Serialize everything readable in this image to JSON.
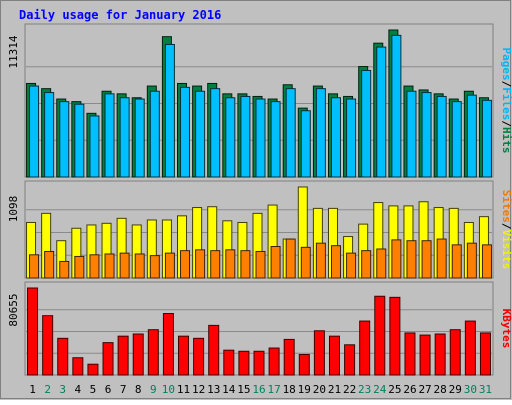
{
  "chart_data": {
    "type": "bar",
    "title": "Daily usage for January 2016",
    "categories": [
      "1",
      "2",
      "3",
      "4",
      "5",
      "6",
      "7",
      "8",
      "9",
      "10",
      "11",
      "12",
      "13",
      "14",
      "15",
      "16",
      "17",
      "18",
      "19",
      "20",
      "21",
      "22",
      "23",
      "24",
      "25",
      "26",
      "27",
      "28",
      "29",
      "30",
      "31"
    ],
    "weekend_days": [
      "2",
      "3",
      "9",
      "10",
      "16",
      "17",
      "23",
      "24",
      "30",
      "31"
    ],
    "panels": [
      {
        "id": "hits-files-pages",
        "max_label": "11314",
        "ymax": 11314,
        "right_labels": [
          "Pages",
          "Files",
          "Hits"
        ],
        "series": [
          {
            "name": "Hits",
            "color": "#008040",
            "values": [
              7200,
              6800,
              6000,
              5800,
              4900,
              6600,
              6400,
              6100,
              7000,
              10800,
              7200,
              7000,
              7200,
              6400,
              6400,
              6200,
              6000,
              7100,
              5300,
              7000,
              6400,
              6200,
              8500,
              10300,
              11314,
              7000,
              6700,
              6400,
              6000,
              6600,
              6100
            ]
          },
          {
            "name": "Files",
            "color": "#00bfff",
            "values": [
              7000,
              6500,
              5800,
              5600,
              4700,
              6400,
              6100,
              6000,
              6600,
              10200,
              6900,
              6600,
              6800,
              6100,
              6200,
              6000,
              5800,
              6800,
              5100,
              6800,
              6100,
              6000,
              8200,
              10000,
              10900,
              6600,
              6500,
              6200,
              5800,
              6300,
              5900
            ]
          },
          {
            "name": "Pages",
            "color": "#00bfff",
            "values": [
              0,
              0,
              0,
              0,
              0,
              0,
              0,
              0,
              0,
              0,
              0,
              0,
              0,
              0,
              0,
              0,
              0,
              0,
              0,
              0,
              0,
              0,
              0,
              0,
              0,
              0,
              0,
              0,
              0,
              0,
              0
            ]
          }
        ]
      },
      {
        "id": "visits-sites",
        "max_label": "1098",
        "ymax": 1098,
        "right_labels": [
          "Sites",
          "Visits"
        ],
        "series": [
          {
            "name": "Visits",
            "color": "#ffff00",
            "values": [
              670,
              780,
              450,
              600,
              640,
              660,
              720,
              640,
              700,
              700,
              750,
              850,
              860,
              690,
              670,
              780,
              880,
              470,
              1098,
              840,
              840,
              500,
              650,
              910,
              870,
              870,
              920,
              850,
              840,
              670,
              740
            ]
          },
          {
            "name": "Sites",
            "color": "#ff8000",
            "values": [
              280,
              320,
              200,
              260,
              280,
              290,
              300,
              290,
              270,
              300,
              330,
              340,
              330,
              340,
              330,
              320,
              380,
              470,
              370,
              420,
              390,
              300,
              330,
              350,
              460,
              450,
              450,
              470,
              400,
              420,
              400
            ]
          }
        ]
      },
      {
        "id": "kbytes",
        "max_label": "80655",
        "ymax": 80655,
        "right_labels": [
          "KBytes"
        ],
        "series": [
          {
            "name": "KBytes",
            "color": "#ff0000",
            "values": [
              80655,
              55000,
              34000,
              16000,
              10000,
              30000,
              36000,
              38000,
              42000,
              57000,
              36000,
              34000,
              46000,
              23000,
              22000,
              22000,
              25000,
              33000,
              19000,
              41000,
              36000,
              28000,
              50000,
              73000,
              72000,
              39000,
              37000,
              38000,
              42000,
              50000,
              39000
            ]
          }
        ]
      }
    ]
  },
  "colors": {
    "background": "#c0c0c0",
    "title": "#0000ff",
    "weekday_label": "#000000",
    "weekend_label": "#00805c"
  }
}
